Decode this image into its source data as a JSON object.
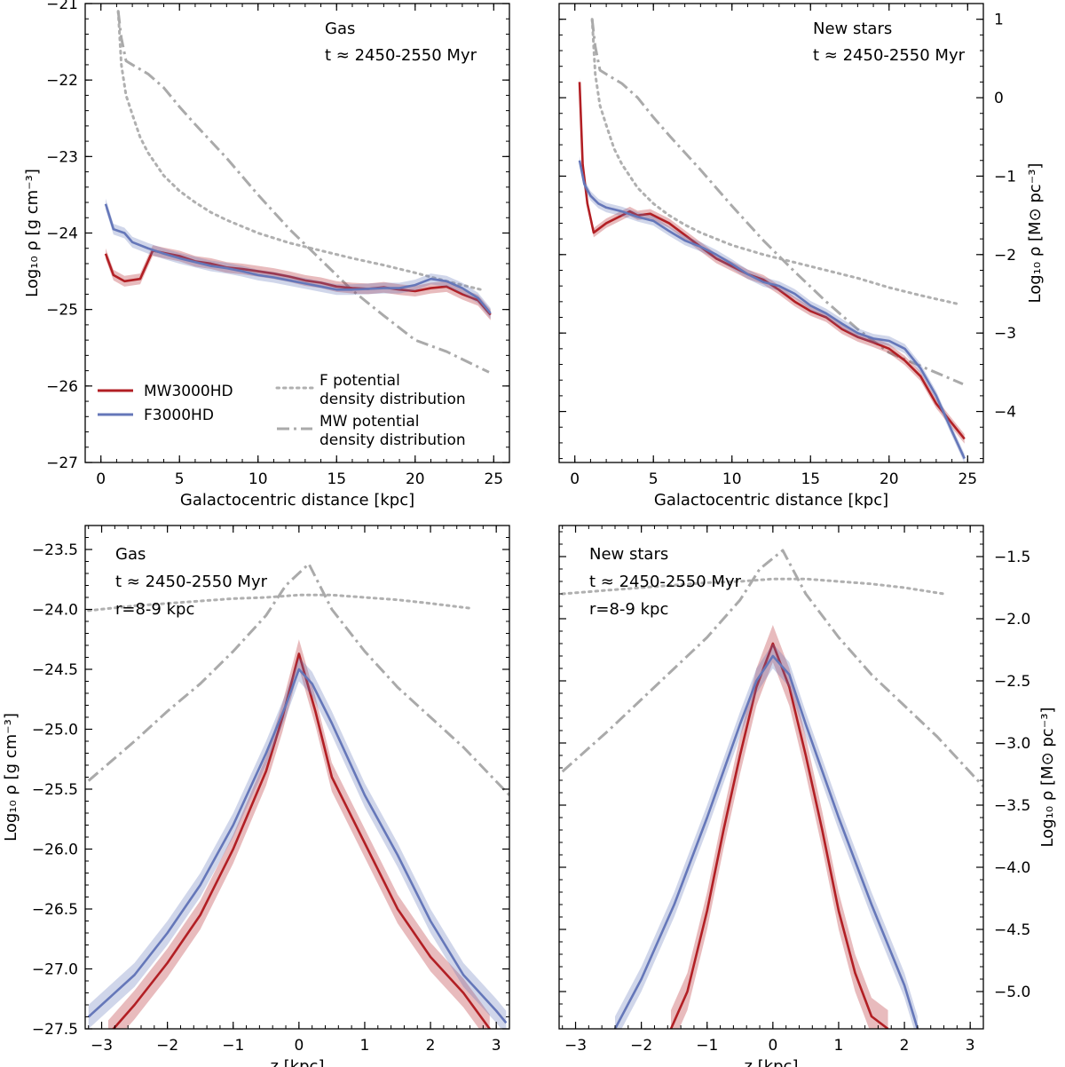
{
  "chart_data": [
    {
      "type": "line",
      "panel": "top-left",
      "xlabel": "Galactocentric distance [kpc]",
      "ylabel": "Log₁₀ ρ [g cm⁻³]",
      "xlim": [
        -1,
        26
      ],
      "ylim": [
        -27,
        -21
      ],
      "xticks": [
        0,
        5,
        10,
        15,
        20,
        25
      ],
      "yticks": [
        -27,
        -26,
        -25,
        -24,
        -23,
        -22,
        -21
      ],
      "annotations": [
        "Gas",
        "t ≈ 2450-2550 Myr"
      ],
      "legend": {
        "position": "bottom-left",
        "entries": [
          {
            "label": "MW3000HD",
            "color": "#b21f24",
            "style": "solid"
          },
          {
            "label": "F3000HD",
            "color": "#6577b9",
            "style": "solid"
          },
          {
            "label_lines": [
              "F potential",
              "density distribution"
            ],
            "color": "#b0b0b0",
            "style": "dotted"
          },
          {
            "label_lines": [
              "MW potential",
              "density distribution"
            ],
            "color": "#aaaaaa",
            "style": "dashdot"
          }
        ]
      },
      "series": [
        {
          "name": "MW3000HD",
          "color": "#b21f24",
          "x": [
            0.3,
            0.8,
            1.5,
            2.5,
            3.3,
            4,
            5,
            6,
            7,
            8,
            9,
            10,
            11,
            12,
            13,
            14,
            15,
            16,
            17,
            18,
            19,
            20,
            21,
            22,
            23,
            24,
            24.8
          ],
          "y": [
            -24.27,
            -24.55,
            -24.63,
            -24.6,
            -24.23,
            -24.26,
            -24.3,
            -24.37,
            -24.4,
            -24.45,
            -24.47,
            -24.5,
            -24.53,
            -24.57,
            -24.62,
            -24.65,
            -24.7,
            -24.72,
            -24.73,
            -24.71,
            -24.74,
            -24.76,
            -24.72,
            -24.7,
            -24.8,
            -24.88,
            -25.07
          ],
          "band": 0.07
        },
        {
          "name": "F3000HD",
          "color": "#6577b9",
          "x": [
            0.3,
            0.8,
            1.5,
            2,
            3,
            4,
            5,
            6,
            7,
            8,
            9,
            10,
            11,
            12,
            13,
            14,
            15,
            16,
            17,
            18,
            19,
            20,
            21,
            22,
            23,
            24,
            24.8
          ],
          "y": [
            -23.62,
            -23.95,
            -24.0,
            -24.12,
            -24.2,
            -24.27,
            -24.33,
            -24.38,
            -24.43,
            -24.46,
            -24.5,
            -24.55,
            -24.58,
            -24.62,
            -24.66,
            -24.7,
            -24.74,
            -24.74,
            -24.73,
            -24.72,
            -24.72,
            -24.68,
            -24.6,
            -24.63,
            -24.72,
            -24.85,
            -25.05
          ],
          "band": 0.07
        },
        {
          "name": "F potential density distribution",
          "color": "#b0b0b0",
          "style": "dotted",
          "x": [
            1.1,
            1.3,
            1.6,
            2,
            2.5,
            3,
            4,
            5,
            6,
            7,
            8,
            10,
            12,
            14,
            16,
            18,
            20,
            22,
            24.4
          ],
          "y": [
            -21.1,
            -21.8,
            -22.2,
            -22.45,
            -22.75,
            -22.95,
            -23.25,
            -23.45,
            -23.6,
            -23.73,
            -23.83,
            -24.0,
            -24.13,
            -24.23,
            -24.33,
            -24.42,
            -24.52,
            -24.63,
            -24.75
          ]
        },
        {
          "name": "MW potential density distribution",
          "color": "#aaaaaa",
          "style": "dashdot",
          "x": [
            1.1,
            1.3,
            1.6,
            2,
            3,
            4,
            5,
            6,
            7,
            8,
            10,
            12,
            14,
            16,
            18,
            20,
            22,
            24.7
          ],
          "y": [
            -21.1,
            -21.45,
            -21.75,
            -21.8,
            -21.92,
            -22.1,
            -22.35,
            -22.58,
            -22.8,
            -23.02,
            -23.5,
            -23.95,
            -24.35,
            -24.75,
            -25.08,
            -25.4,
            -25.55,
            -25.82
          ]
        }
      ]
    },
    {
      "type": "line",
      "panel": "top-right",
      "xlabel": "Galactocentric distance [kpc]",
      "ylabel": "Log₁₀ ρ [M⊙ pc⁻³]",
      "xlim": [
        -1,
        26
      ],
      "ylim": [
        -4.65,
        1.2
      ],
      "xticks": [
        0,
        5,
        10,
        15,
        20,
        25
      ],
      "yticks": [
        -4,
        -3,
        -2,
        -1,
        0,
        1
      ],
      "annotations": [
        "New stars",
        "t ≈ 2450-2550 Myr"
      ],
      "series": [
        {
          "name": "MW3000HD",
          "color": "#b21f24",
          "x": [
            0.3,
            0.5,
            0.8,
            1.2,
            2,
            3,
            3.5,
            4,
            4.8,
            5.5,
            6,
            7,
            8,
            9,
            10,
            11,
            12,
            13,
            14,
            15,
            16,
            17,
            18,
            19,
            20,
            21,
            22,
            23,
            24,
            24.8
          ],
          "y": [
            0.2,
            -0.85,
            -1.35,
            -1.72,
            -1.6,
            -1.5,
            -1.45,
            -1.5,
            -1.48,
            -1.55,
            -1.6,
            -1.75,
            -1.9,
            -2.05,
            -2.15,
            -2.25,
            -2.32,
            -2.45,
            -2.6,
            -2.72,
            -2.8,
            -2.95,
            -3.05,
            -3.12,
            -3.2,
            -3.35,
            -3.55,
            -3.9,
            -4.15,
            -4.35
          ],
          "band": 0.06
        },
        {
          "name": "F3000HD",
          "color": "#6577b9",
          "x": [
            0.3,
            0.6,
            1,
            1.5,
            2,
            3,
            4,
            5,
            6,
            7,
            8,
            9,
            10,
            11,
            12,
            13,
            14,
            15,
            16,
            17,
            18,
            19,
            20,
            21,
            22,
            23,
            24,
            24.8
          ],
          "y": [
            -0.8,
            -1.1,
            -1.25,
            -1.35,
            -1.4,
            -1.45,
            -1.52,
            -1.57,
            -1.7,
            -1.82,
            -1.9,
            -2.0,
            -2.12,
            -2.25,
            -2.35,
            -2.4,
            -2.5,
            -2.65,
            -2.75,
            -2.88,
            -3.0,
            -3.07,
            -3.1,
            -3.2,
            -3.45,
            -3.8,
            -4.25,
            -4.6
          ],
          "band": 0.06
        },
        {
          "name": "F potential density distribution",
          "color": "#b0b0b0",
          "style": "dotted",
          "x": [
            1.1,
            1.3,
            1.6,
            2,
            2.5,
            3,
            4,
            5,
            6,
            7,
            8,
            10,
            12,
            14,
            16,
            18,
            20,
            22,
            24.4
          ],
          "y": [
            1.0,
            0.3,
            -0.1,
            -0.35,
            -0.65,
            -0.85,
            -1.15,
            -1.35,
            -1.5,
            -1.62,
            -1.72,
            -1.88,
            -2.0,
            -2.1,
            -2.2,
            -2.3,
            -2.42,
            -2.52,
            -2.63
          ]
        },
        {
          "name": "MW potential density distribution",
          "color": "#aaaaaa",
          "style": "dashdot",
          "x": [
            1.1,
            1.3,
            1.6,
            2,
            3,
            4,
            5,
            6,
            7,
            8,
            10,
            12,
            14,
            16,
            18,
            20,
            22,
            24.7
          ],
          "y": [
            1.0,
            0.65,
            0.35,
            0.3,
            0.18,
            0.0,
            -0.25,
            -0.48,
            -0.7,
            -0.92,
            -1.38,
            -1.82,
            -2.22,
            -2.6,
            -2.95,
            -3.25,
            -3.42,
            -3.65
          ]
        }
      ]
    },
    {
      "type": "line",
      "panel": "bottom-left",
      "xlabel": "z [kpc]",
      "ylabel": "Log₁₀ ρ [g cm⁻³]",
      "xlim": [
        -3.25,
        3.2
      ],
      "ylim": [
        -27.5,
        -23.3
      ],
      "xticks": [
        -3,
        -2,
        -1,
        0,
        1,
        2,
        3
      ],
      "yticks": [
        -27.5,
        -27.0,
        -26.5,
        -26.0,
        -25.5,
        -25.0,
        -24.5,
        -24.0,
        -23.5
      ],
      "annotations": [
        "Gas",
        "t ≈ 2450-2550 Myr",
        "r=8-9 kpc"
      ],
      "series": [
        {
          "name": "MW3000HD",
          "color": "#b21f24",
          "x": [
            -2.9,
            -2.5,
            -2,
            -1.5,
            -1,
            -0.5,
            -0.25,
            0,
            0.25,
            0.5,
            1,
            1.5,
            2,
            2.5,
            2.9
          ],
          "y": [
            -27.55,
            -27.3,
            -26.95,
            -26.55,
            -26.0,
            -25.35,
            -24.9,
            -24.37,
            -24.85,
            -25.4,
            -25.95,
            -26.5,
            -26.9,
            -27.2,
            -27.5
          ],
          "band": 0.12
        },
        {
          "name": "F3000HD",
          "color": "#6577b9",
          "x": [
            -3.2,
            -3,
            -2.5,
            -2,
            -1.5,
            -1,
            -0.5,
            -0.2,
            0,
            0.2,
            0.5,
            1,
            1.5,
            2,
            2.5,
            3,
            3.15
          ],
          "y": [
            -27.4,
            -27.3,
            -27.05,
            -26.7,
            -26.3,
            -25.8,
            -25.2,
            -24.8,
            -24.5,
            -24.62,
            -24.95,
            -25.55,
            -26.05,
            -26.6,
            -27.05,
            -27.35,
            -27.45
          ],
          "band": 0.1
        },
        {
          "name": "F potential density distribution",
          "color": "#b0b0b0",
          "style": "dotted",
          "x": [
            -3.2,
            -2.5,
            -2,
            -1.5,
            -1,
            -0.5,
            0,
            0.5,
            1,
            1.5,
            2,
            2.6
          ],
          "y": [
            -24.01,
            -23.97,
            -23.95,
            -23.93,
            -23.91,
            -23.9,
            -23.88,
            -23.88,
            -23.9,
            -23.92,
            -23.95,
            -23.99
          ]
        },
        {
          "name": "MW potential density distribution",
          "color": "#aaaaaa",
          "style": "dashdot",
          "x": [
            -3.2,
            -2.5,
            -2,
            -1.5,
            -1,
            -0.5,
            -0.2,
            0.15,
            0.5,
            1,
            1.5,
            2,
            2.5,
            3.2
          ],
          "y": [
            -25.43,
            -25.1,
            -24.85,
            -24.62,
            -24.35,
            -24.05,
            -23.8,
            -23.62,
            -24.0,
            -24.35,
            -24.65,
            -24.9,
            -25.15,
            -25.55
          ]
        }
      ]
    },
    {
      "type": "line",
      "panel": "bottom-right",
      "xlabel": "z [kpc]",
      "ylabel": "Log₁₀ ρ [M⊙ pc⁻³]",
      "xlim": [
        -3.25,
        3.2
      ],
      "ylim": [
        -5.3,
        -1.25
      ],
      "xticks": [
        -3,
        -2,
        -1,
        0,
        1,
        2,
        3
      ],
      "yticks": [
        -5.0,
        -4.5,
        -4.0,
        -3.5,
        -3.0,
        -2.5,
        -2.0,
        -1.5
      ],
      "annotations": [
        "New stars",
        "t ≈ 2450-2550 Myr",
        "r=8-9 kpc"
      ],
      "series": [
        {
          "name": "MW3000HD",
          "color": "#b21f24",
          "x": [
            -1.55,
            -1.3,
            -1,
            -0.75,
            -0.5,
            -0.25,
            0,
            0.25,
            0.5,
            0.75,
            1,
            1.25,
            1.5,
            1.75
          ],
          "y": [
            -5.3,
            -5.0,
            -4.35,
            -3.7,
            -3.1,
            -2.55,
            -2.2,
            -2.55,
            -3.1,
            -3.7,
            -4.35,
            -4.85,
            -5.2,
            -5.3
          ],
          "band": 0.15
        },
        {
          "name": "F3000HD",
          "color": "#6577b9",
          "x": [
            -2.4,
            -2.2,
            -2,
            -1.5,
            -1,
            -0.5,
            -0.25,
            0,
            0.25,
            0.5,
            1,
            1.5,
            2,
            2.2
          ],
          "y": [
            -5.3,
            -5.1,
            -4.9,
            -4.3,
            -3.6,
            -2.85,
            -2.5,
            -2.3,
            -2.45,
            -2.85,
            -3.6,
            -4.3,
            -4.95,
            -5.3
          ],
          "band": 0.1
        },
        {
          "name": "F potential density distribution",
          "color": "#b0b0b0",
          "style": "dotted",
          "x": [
            -3.2,
            -2.5,
            -2,
            -1.5,
            -1,
            -0.5,
            0,
            0.5,
            1,
            1.5,
            2,
            2.6
          ],
          "y": [
            -1.8,
            -1.77,
            -1.75,
            -1.73,
            -1.71,
            -1.7,
            -1.68,
            -1.68,
            -1.7,
            -1.72,
            -1.75,
            -1.8
          ]
        },
        {
          "name": "MW potential density distribution",
          "color": "#aaaaaa",
          "style": "dashdot",
          "x": [
            -3.2,
            -2.5,
            -2,
            -1.5,
            -1,
            -0.5,
            -0.2,
            0.15,
            0.5,
            1,
            1.5,
            2,
            2.5,
            3.2
          ],
          "y": [
            -3.23,
            -2.9,
            -2.65,
            -2.4,
            -2.15,
            -1.85,
            -1.6,
            -1.45,
            -1.8,
            -2.15,
            -2.45,
            -2.7,
            -2.95,
            -3.35
          ]
        }
      ]
    }
  ]
}
